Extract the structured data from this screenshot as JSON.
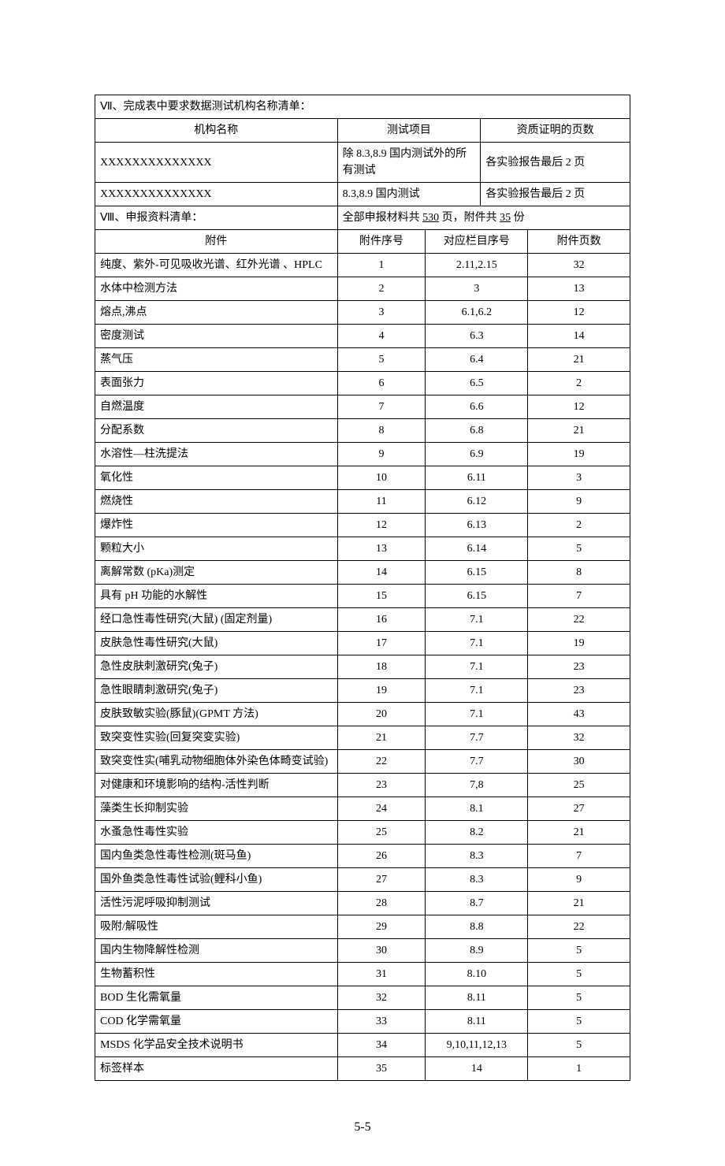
{
  "section7": {
    "header": "Ⅶ、完成表中要求数据测试机构名称清单：",
    "cols": {
      "name": "机构名称",
      "item": "测试项目",
      "cert": "资质证明的页数"
    },
    "rows": [
      {
        "name": "XXXXXXXXXXXXXX",
        "item": "除 8.3,8.9 国内测试外的所有测试",
        "cert": "各实验报告最后 2 页"
      },
      {
        "name": "XXXXXXXXXXXXXX",
        "item": "8.3,8.9 国内测试",
        "cert": "各实验报告最后 2 页"
      }
    ]
  },
  "section8": {
    "label": "Ⅷ、申报资料清单：",
    "right_prefix": "全部申报材料共 ",
    "pages": "530",
    "right_mid": " 页，附件共 ",
    "copies": "35",
    "right_suffix": " 份"
  },
  "attachHeader": {
    "att": "附件",
    "seq": "附件序号",
    "col": "对应栏目序号",
    "pages": "附件页数"
  },
  "attachments": [
    {
      "att": "纯度、紫外-可见吸收光谱、红外光谱 、HPLC",
      "seq": "1",
      "col": "2.11,2.15",
      "pages": "32"
    },
    {
      "att": "水体中检测方法",
      "seq": "2",
      "col": "3",
      "pages": "13"
    },
    {
      "att": "熔点,沸点",
      "seq": "3",
      "col": "6.1,6.2",
      "pages": "12"
    },
    {
      "att": "密度测试",
      "seq": "4",
      "col": "6.3",
      "pages": "14"
    },
    {
      "att": "蒸气压",
      "seq": "5",
      "col": "6.4",
      "pages": "21"
    },
    {
      "att": "表面张力",
      "seq": "6",
      "col": "6.5",
      "pages": "2"
    },
    {
      "att": "自燃温度",
      "seq": "7",
      "col": "6.6",
      "pages": "12"
    },
    {
      "att": "分配系数",
      "seq": "8",
      "col": "6.8",
      "pages": "21"
    },
    {
      "att": "水溶性—柱洗提法",
      "seq": "9",
      "col": "6.9",
      "pages": "19"
    },
    {
      "att": "氧化性",
      "seq": "10",
      "col": "6.11",
      "pages": "3"
    },
    {
      "att": "燃烧性",
      "seq": "11",
      "col": "6.12",
      "pages": "9"
    },
    {
      "att": "爆炸性",
      "seq": "12",
      "col": "6.13",
      "pages": "2"
    },
    {
      "att": "颗粒大小",
      "seq": "13",
      "col": "6.14",
      "pages": "5"
    },
    {
      "att": "离解常数 (pKa)测定",
      "seq": "14",
      "col": "6.15",
      "pages": "8"
    },
    {
      "att": "具有 pH 功能的水解性",
      "seq": "15",
      "col": "6.15",
      "pages": "7"
    },
    {
      "att": "经口急性毒性研究(大鼠) (固定剂量)",
      "seq": "16",
      "col": "7.1",
      "pages": "22"
    },
    {
      "att": "皮肤急性毒性研究(大鼠)",
      "seq": "17",
      "col": "7.1",
      "pages": "19"
    },
    {
      "att": "急性皮肤刺激研究(兔子)",
      "seq": "18",
      "col": "7.1",
      "pages": "23"
    },
    {
      "att": "急性眼睛刺激研究(兔子)",
      "seq": "19",
      "col": "7.1",
      "pages": "23"
    },
    {
      "att": "皮肤致敏实验(豚鼠)(GPMT 方法)",
      "seq": "20",
      "col": "7.1",
      "pages": "43"
    },
    {
      "att": "致突变性实验(回复突变实验)",
      "seq": "21",
      "col": "7.7",
      "pages": "32"
    },
    {
      "att": "致突变性实(哺乳动物细胞体外染色体畸变试验)",
      "seq": "22",
      "col": "7.7",
      "pages": "30"
    },
    {
      "att": "对健康和环境影响的结构-活性判断",
      "seq": "23",
      "col": "7,8",
      "pages": "25"
    },
    {
      "att": "藻类生长抑制实验",
      "seq": "24",
      "col": "8.1",
      "pages": "27"
    },
    {
      "att": "水蚤急性毒性实验",
      "seq": "25",
      "col": "8.2",
      "pages": "21"
    },
    {
      "att": "国内鱼类急性毒性检测(斑马鱼)",
      "seq": "26",
      "col": "8.3",
      "pages": "7"
    },
    {
      "att": "国外鱼类急性毒性试验(鲤科小鱼)",
      "seq": "27",
      "col": "8.3",
      "pages": "9"
    },
    {
      "att": "活性污泥呼吸抑制测试",
      "seq": "28",
      "col": "8.7",
      "pages": "21"
    },
    {
      "att": "吸附/解吸性",
      "seq": "29",
      "col": "8.8",
      "pages": "22"
    },
    {
      "att": "国内生物降解性检测",
      "seq": "30",
      "col": "8.9",
      "pages": "5"
    },
    {
      "att": "生物蓄积性",
      "seq": "31",
      "col": "8.10",
      "pages": "5"
    },
    {
      "att": "BOD 生化需氧量",
      "seq": "32",
      "col": "8.11",
      "pages": "5"
    },
    {
      "att": "COD 化学需氧量",
      "seq": "33",
      "col": "8.11",
      "pages": "5"
    },
    {
      "att": "MSDS 化学品安全技术说明书",
      "seq": "34",
      "col": "9,10,11,12,13",
      "pages": "5"
    },
    {
      "att": "标签样本",
      "seq": "35",
      "col": "14",
      "pages": "1"
    }
  ],
  "footer": "5-5"
}
